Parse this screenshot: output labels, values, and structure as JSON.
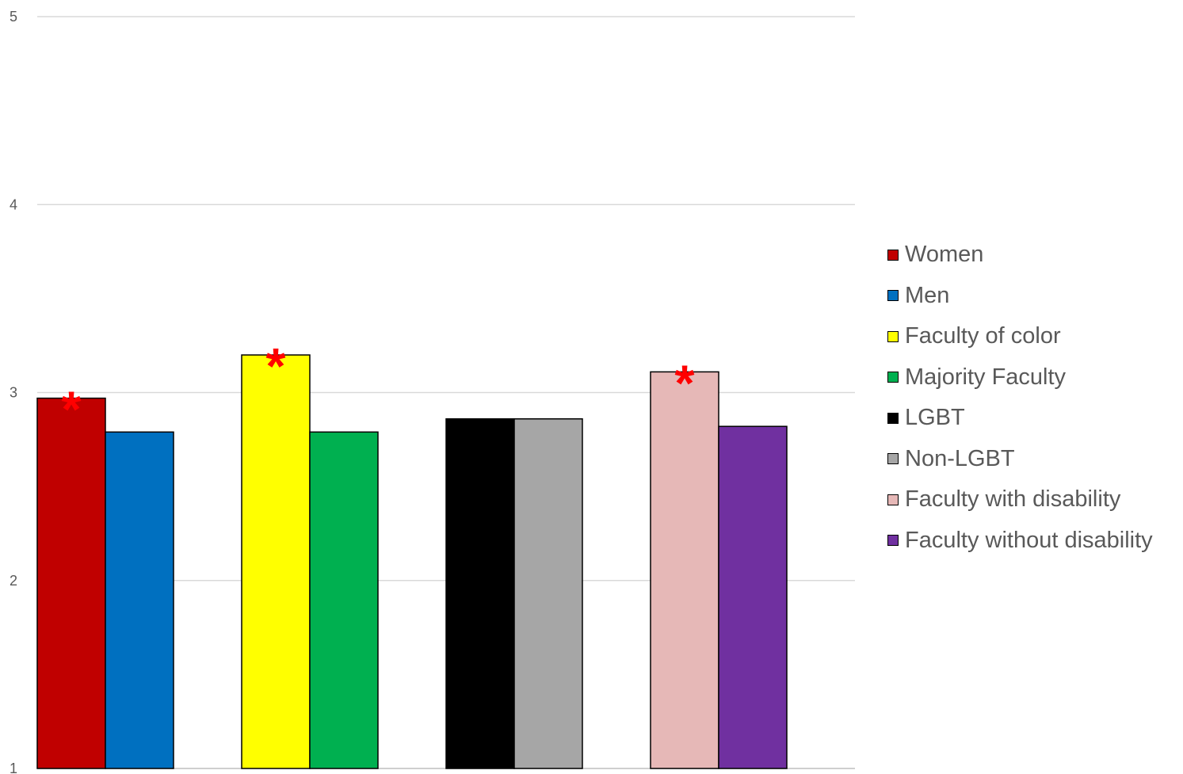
{
  "chart_data": {
    "type": "bar",
    "title": "",
    "xlabel": "",
    "ylabel": "",
    "ylim": [
      1,
      5
    ],
    "yticks": [
      1,
      2,
      3,
      4,
      5
    ],
    "grid": true,
    "legend_position": "right",
    "series": [
      {
        "name": "Women",
        "value": 2.97,
        "color": "#c00000",
        "group": 0,
        "significant": true
      },
      {
        "name": "Men",
        "value": 2.79,
        "color": "#0070c0",
        "group": 0,
        "significant": false
      },
      {
        "name": "Faculty of color",
        "value": 3.2,
        "color": "#ffff00",
        "group": 1,
        "significant": true
      },
      {
        "name": "Majority Faculty",
        "value": 2.79,
        "color": "#00b050",
        "group": 1,
        "significant": false
      },
      {
        "name": "LGBT",
        "value": 2.86,
        "color": "#000000",
        "group": 2,
        "significant": false
      },
      {
        "name": "Non-LGBT",
        "value": 2.86,
        "color": "#a6a6a6",
        "group": 2,
        "significant": false
      },
      {
        "name": "Faculty with disability",
        "value": 3.11,
        "color": "#e6b8b7",
        "group": 3,
        "significant": true
      },
      {
        "name": "Faculty without disability",
        "value": 2.82,
        "color": "#7030a0",
        "group": 3,
        "significant": false
      }
    ],
    "significance_marker": "*"
  }
}
